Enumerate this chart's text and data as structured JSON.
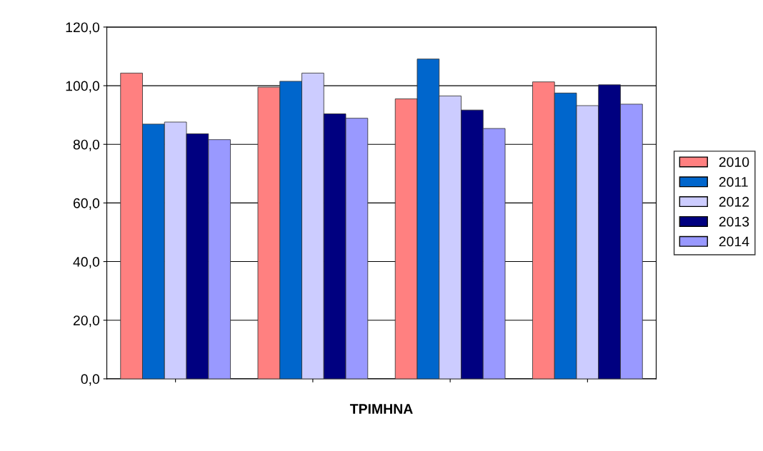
{
  "chart_data": {
    "type": "bar",
    "xlabel": "ΤΡΙΜΗΝΑ",
    "categories": [
      null,
      null,
      null,
      null
    ],
    "series": [
      {
        "name": "2010",
        "color": "#ff8080",
        "values": [
          104.3,
          99.5,
          95.5,
          101.3
        ]
      },
      {
        "name": "2011",
        "color": "#0066cc",
        "values": [
          86.9,
          101.5,
          109.1,
          97.5
        ]
      },
      {
        "name": "2012",
        "color": "#ccccff",
        "values": [
          87.6,
          104.3,
          96.5,
          93.2
        ]
      },
      {
        "name": "2013",
        "color": "#000080",
        "values": [
          83.6,
          90.4,
          91.7,
          100.3
        ]
      },
      {
        "name": "2014",
        "color": "#9999ff",
        "values": [
          81.6,
          88.9,
          85.4,
          93.7
        ]
      }
    ],
    "ylim": [
      0,
      120
    ],
    "yticks": [
      {
        "value": 0,
        "label": "0,0"
      },
      {
        "value": 20,
        "label": "20,0"
      },
      {
        "value": 40,
        "label": "40,0"
      },
      {
        "value": 60,
        "label": "60,0"
      },
      {
        "value": 80,
        "label": "80,0"
      },
      {
        "value": 100,
        "label": "100,0"
      },
      {
        "value": 120,
        "label": "120,0"
      }
    ],
    "grid": "y",
    "legend": "right"
  }
}
